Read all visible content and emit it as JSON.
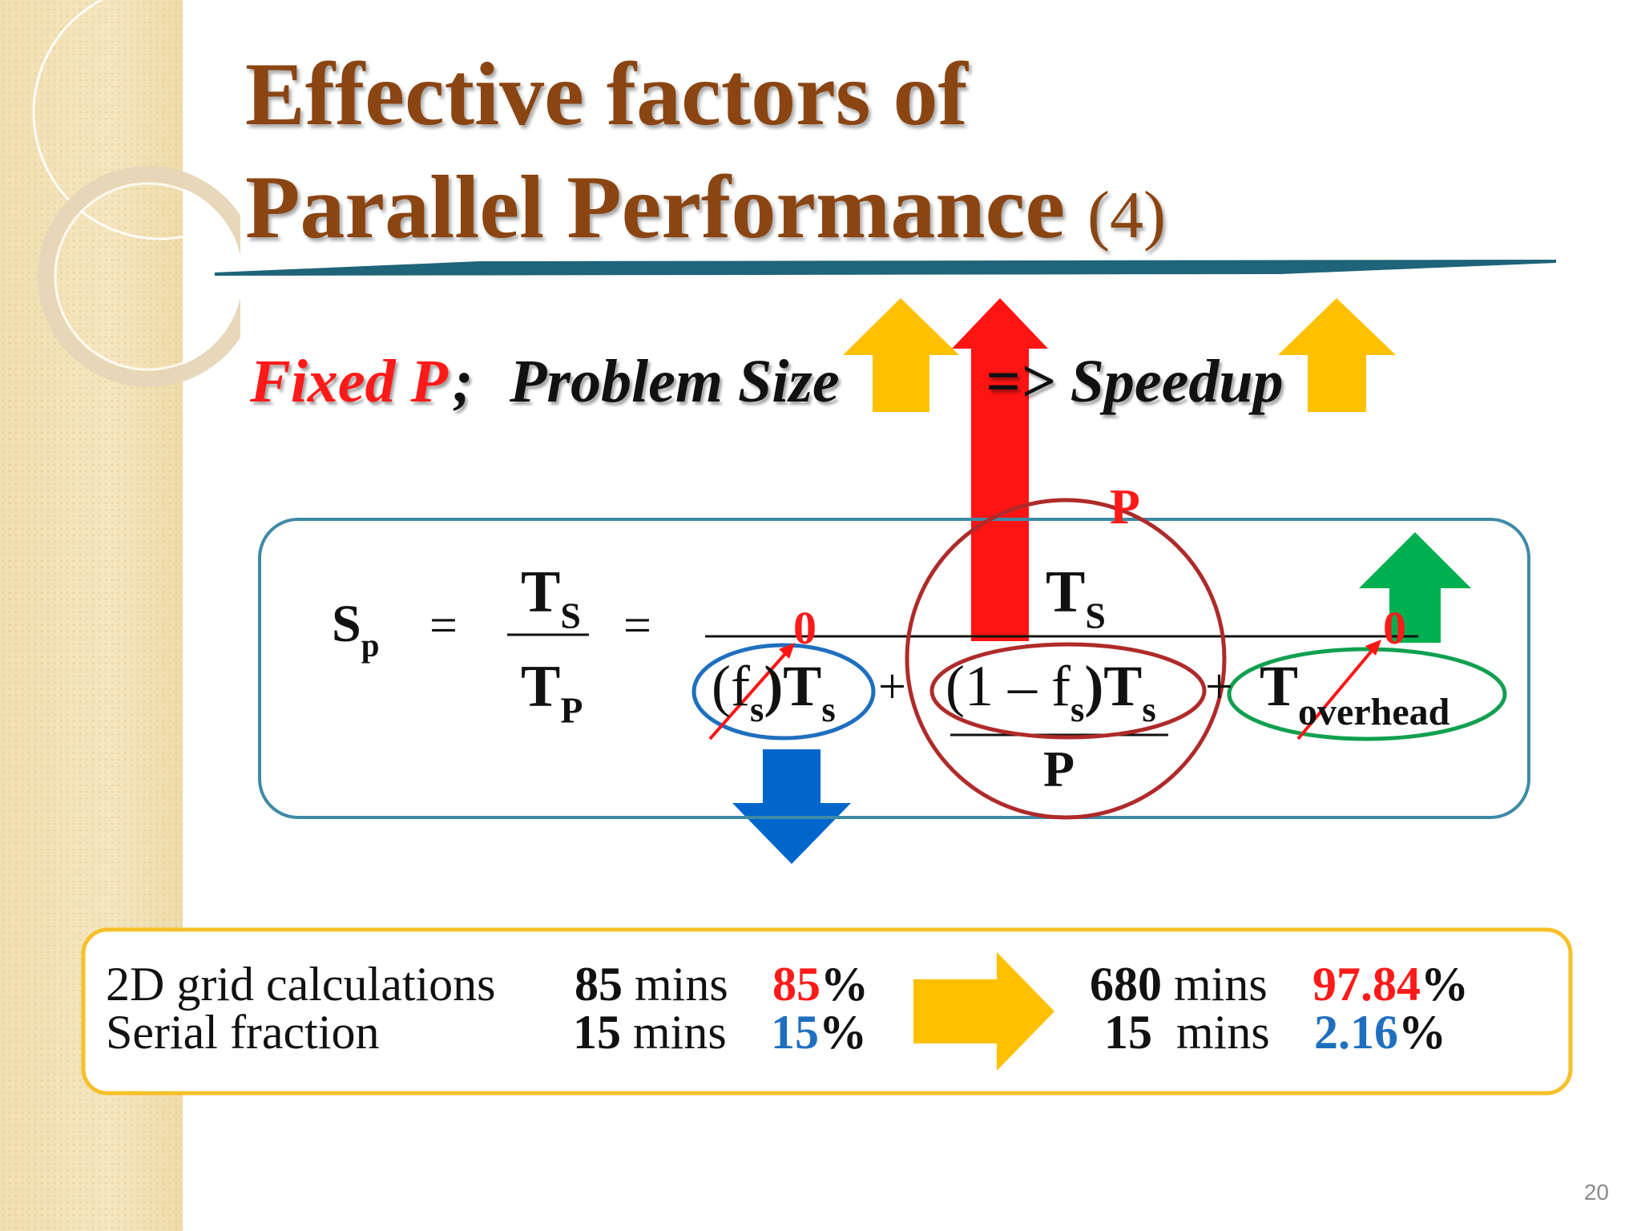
{
  "slide": {
    "title_line1": "Effective factors of",
    "title_line2": "Parallel Performance",
    "title_suffix": "(4)",
    "page_number": "20",
    "colors": {
      "title": "#8a4512",
      "red": "#ff1a1a",
      "blue": "#1f6fbf",
      "yellow_arrow": "#ffc000",
      "red_arrow": "#ff1414",
      "green_arrow": "#00b050",
      "blue_arrow": "#0066cc",
      "formula_box_border": "#3e8aa6",
      "table_box_border": "#f5c02a"
    }
  },
  "subtitle": {
    "fixed_p": "Fixed P",
    "semicolon": ";",
    "problem_size": "Problem Size",
    "speedup": "=> Speedup",
    "icons": [
      "yellow-up-arrow-icon",
      "red-up-arrow-icon",
      "yellow-up-arrow-icon"
    ]
  },
  "formula": {
    "sp": "S",
    "sp_sub": "p",
    "equals": "=",
    "ts": "T",
    "ts_sub": "S",
    "tp": "T",
    "tp_sub": "P",
    "fs_term": "(f",
    "fs_sub": "s",
    "fs_close": ")T",
    "fs_ts_sub": "s",
    "plus": "+",
    "one_minus": "(1 – f",
    "one_minus_sub": "s",
    "one_minus_close": ")T",
    "one_minus_ts_sub": "s",
    "over_p": "P",
    "t_overhead": "T",
    "overhead_sub": "overhead",
    "zero_left": "0",
    "zero_right": "0",
    "p_label": "P",
    "icons": [
      "green-up-arrow-icon",
      "blue-down-arrow-icon"
    ]
  },
  "table": {
    "rows_left": [
      {
        "label": "2D grid calculations",
        "num": "85",
        "unit": "mins",
        "pct_num": "85",
        "pct_sign": "%"
      },
      {
        "label": "Serial fraction",
        "num": "15",
        "unit": "mins",
        "pct_num": "15",
        "pct_sign": "%"
      }
    ],
    "rows_right": [
      {
        "num": "680",
        "unit": "mins",
        "pct_num": "97.84",
        "pct_sign": "%"
      },
      {
        "num": "15",
        "unit": "mins",
        "pct_num": "2.16",
        "pct_sign": "%"
      }
    ],
    "icon": "yellow-right-arrow-icon"
  }
}
